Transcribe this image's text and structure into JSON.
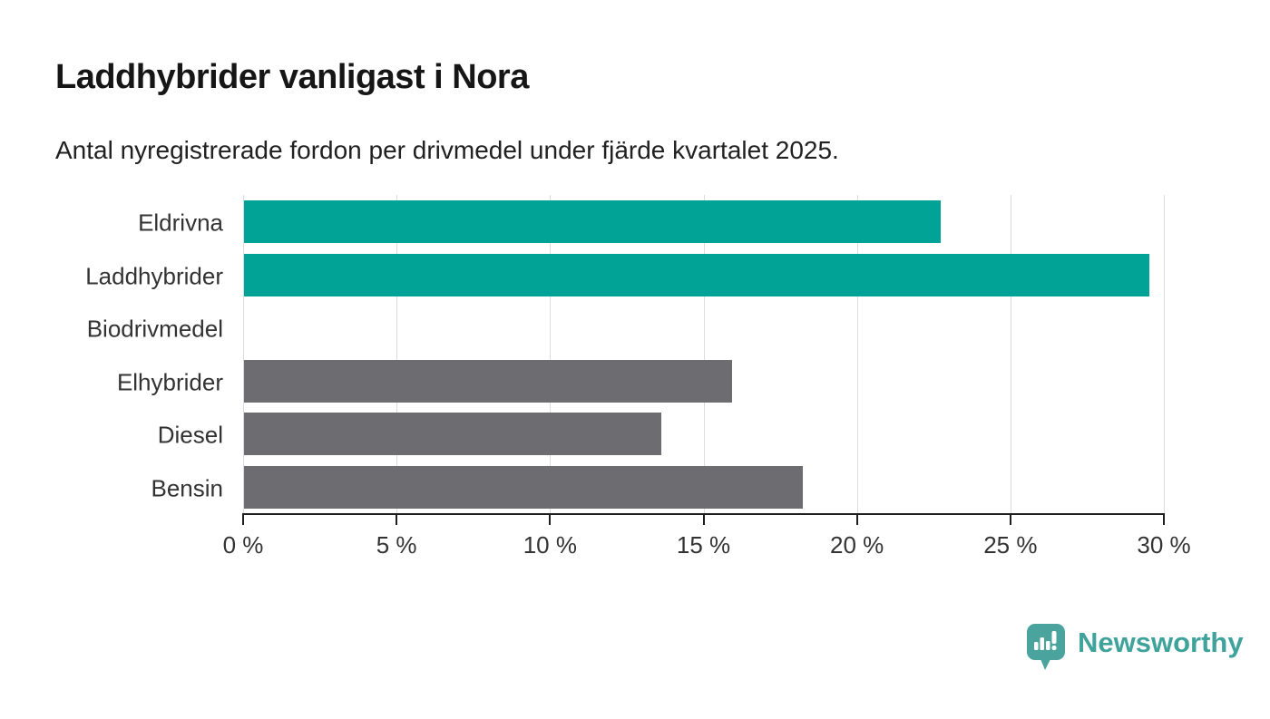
{
  "header": {
    "title": "Laddhybrider vanligast i Nora",
    "subtitle": "Antal nyregistrerade fordon per drivmedel under fjärde kvartalet 2025."
  },
  "chart_data": {
    "type": "bar",
    "orientation": "horizontal",
    "title": "Laddhybrider vanligast i Nora",
    "subtitle": "Antal nyregistrerade fordon per drivmedel under fjärde kvartalet 2025.",
    "categories": [
      "Eldrivna",
      "Laddhybrider",
      "Biodrivmedel",
      "Elhybrider",
      "Diesel",
      "Bensin"
    ],
    "values": [
      22.7,
      29.5,
      0,
      15.9,
      13.6,
      18.2
    ],
    "unit": "%",
    "bar_colors": [
      "#00a396",
      "#00a396",
      "#6d6d71",
      "#6d6d71",
      "#6d6d71",
      "#6d6d71"
    ],
    "highlight_color": "#00a396",
    "default_color": "#6d6d71",
    "xlim": [
      0,
      30
    ],
    "x_ticks": [
      0,
      5,
      10,
      15,
      20,
      25,
      30
    ],
    "x_tick_labels": [
      "0 %",
      "5 %",
      "10 %",
      "15 %",
      "20 %",
      "25 %",
      "30 %"
    ],
    "grid": "vertical-gridlines",
    "gridline_color": "#dcdcdc",
    "axis_color": "#1f1f1f",
    "legend": "none"
  },
  "footer": {
    "brand": "Newsworthy",
    "brand_color": "#3fa39c",
    "logo_icon": "bar-chart-speech-bubble-icon",
    "logo_icon_color": "#4aa49d"
  }
}
